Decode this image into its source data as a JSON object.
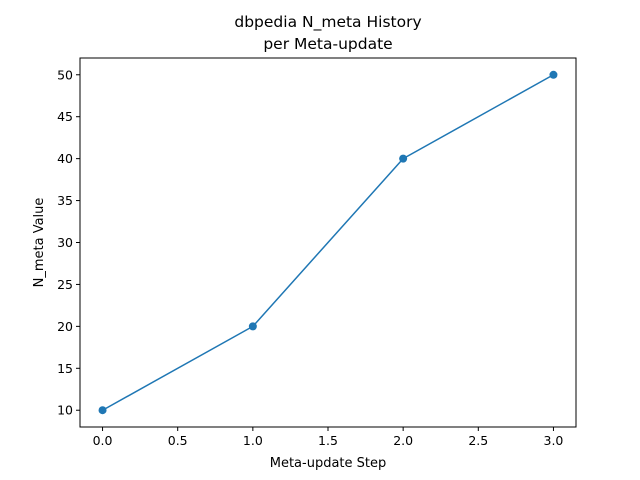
{
  "chart_data": {
    "type": "line",
    "title": [
      "dbpedia N_meta History",
      "per Meta-update"
    ],
    "xlabel": "Meta-update Step",
    "ylabel": "N_meta Value",
    "xlim": [
      -0.15,
      3.15
    ],
    "ylim": [
      8,
      52
    ],
    "x_ticks": [
      "0.0",
      "0.5",
      "1.0",
      "1.5",
      "2.0",
      "2.5",
      "3.0"
    ],
    "y_ticks": [
      "10",
      "15",
      "20",
      "25",
      "30",
      "35",
      "40",
      "45",
      "50"
    ],
    "grid": false,
    "series": [
      {
        "color": "#1f77b4",
        "marker": "circle",
        "x": [
          0,
          1,
          2,
          3
        ],
        "y": [
          10,
          20,
          40,
          50
        ]
      }
    ]
  }
}
